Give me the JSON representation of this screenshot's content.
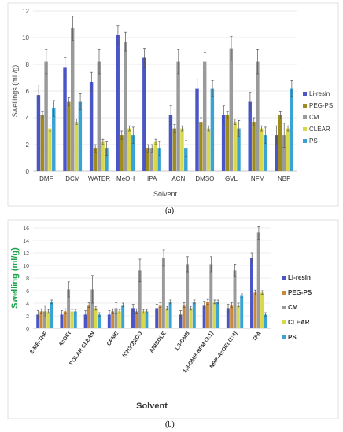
{
  "panel_a_label": "(a)",
  "panel_b_label": "(b)",
  "chart_data": [
    {
      "type": "bar",
      "ylabel": "Swellings (mL/g)",
      "xlabel": "Solvent",
      "ylim": [
        0,
        12
      ],
      "yticks": [
        0,
        2,
        4,
        6,
        8,
        10,
        12
      ],
      "grid": true,
      "legend_position": "right",
      "categories": [
        "DMF",
        "DCM",
        "WATER",
        "MeOH",
        "IPA",
        "ACN",
        "DMSO",
        "GVL",
        "NFM",
        "NBP"
      ],
      "series": [
        {
          "name": "Li-resin",
          "color": "#4a55c7",
          "values": [
            5.7,
            7.8,
            6.7,
            10.2,
            8.5,
            4.2,
            6.2,
            4.2,
            5.2,
            2.7
          ]
        },
        {
          "name": "PEG-PS",
          "color": "#9e8b1e",
          "values": [
            4.2,
            5.2,
            1.7,
            2.7,
            1.7,
            3.2,
            3.7,
            4.2,
            3.7,
            4.2
          ]
        },
        {
          "name": "CM",
          "color": "#9a9a9a",
          "values": [
            8.2,
            10.7,
            8.2,
            9.7,
            1.7,
            8.2,
            8.2,
            9.2,
            8.2,
            2.7
          ]
        },
        {
          "name": "CLEAR",
          "color": "#d8d84a",
          "values": [
            3.2,
            3.7,
            2.2,
            3.2,
            2.2,
            3.2,
            3.2,
            3.7,
            3.2,
            3.2
          ]
        },
        {
          "name": "PS",
          "color": "#3aa3d6",
          "values": [
            4.7,
            5.2,
            1.7,
            2.7,
            1.7,
            1.7,
            6.2,
            3.2,
            2.7,
            6.2
          ]
        }
      ],
      "errors": [
        [
          0.7,
          0.7,
          0.7,
          0.7,
          0.7,
          0.7,
          0.7,
          0.7,
          0.7,
          0.7
        ],
        [
          0.3,
          0.3,
          0.3,
          0.3,
          0.3,
          0.3,
          0.3,
          0.3,
          0.3,
          0.3
        ],
        [
          0.9,
          0.9,
          0.9,
          0.7,
          0.3,
          0.9,
          0.7,
          0.9,
          0.9,
          0.9
        ],
        [
          0.2,
          0.2,
          0.2,
          0.2,
          0.2,
          0.2,
          0.2,
          0.2,
          0.2,
          0.2
        ],
        [
          0.6,
          0.6,
          0.5,
          0.6,
          0.5,
          0.6,
          0.6,
          0.6,
          0.6,
          0.6
        ]
      ]
    },
    {
      "type": "bar",
      "ylabel": "Swelling (ml/g)",
      "xlabel": "Solvent",
      "ylim": [
        0,
        16
      ],
      "yticks": [
        0,
        2,
        4,
        6,
        8,
        10,
        12,
        14,
        16
      ],
      "grid": true,
      "legend_position": "right",
      "categories": [
        "2-ME-THF",
        "AcOEt",
        "POLAR CLEAN",
        "CPME",
        "(CH3O)2CO",
        "ANISOLE",
        "1,3-DMB",
        "1,3-DMB-NFM (3:1)",
        "NBP-AcOEt (1:4)",
        "TFA"
      ],
      "series": [
        {
          "name": "Li-resin",
          "color": "#4a55c7",
          "values": [
            2.2,
            2.2,
            2.2,
            2.2,
            3.2,
            3.2,
            2.2,
            3.7,
            3.2,
            11.2
          ]
        },
        {
          "name": "PEG-PS",
          "color": "#c8893a",
          "values": [
            2.7,
            2.7,
            3.7,
            2.7,
            2.7,
            3.7,
            3.7,
            4.2,
            3.7,
            5.7
          ]
        },
        {
          "name": "CM",
          "color": "#9a9a9a",
          "values": [
            2.7,
            6.2,
            6.2,
            3.2,
            9.2,
            11.2,
            10.2,
            10.2,
            9.2,
            15.2
          ]
        },
        {
          "name": "CLEAR",
          "color": "#d8d84a",
          "values": [
            2.7,
            2.7,
            3.2,
            2.7,
            2.7,
            3.2,
            3.2,
            4.2,
            3.7,
            5.7
          ]
        },
        {
          "name": "PS",
          "color": "#3aa3d6",
          "values": [
            4.2,
            2.7,
            2.2,
            3.7,
            2.7,
            4.2,
            4.2,
            4.2,
            5.2,
            2.2
          ]
        }
      ],
      "errors": [
        [
          0.6,
          0.6,
          0.6,
          0.6,
          0.6,
          0.6,
          0.6,
          0.6,
          0.6,
          0.8
        ],
        [
          0.4,
          0.4,
          0.4,
          0.4,
          0.4,
          0.4,
          0.4,
          0.4,
          0.4,
          0.4
        ],
        [
          0.9,
          1.2,
          2.2,
          0.9,
          1.8,
          1.3,
          1.2,
          1.2,
          1.0,
          1.0
        ],
        [
          0.3,
          0.3,
          0.3,
          0.3,
          0.3,
          0.3,
          0.3,
          0.3,
          0.3,
          0.3
        ],
        [
          0.3,
          0.3,
          0.3,
          0.3,
          0.3,
          0.3,
          0.3,
          0.3,
          0.3,
          0.3
        ]
      ]
    }
  ]
}
